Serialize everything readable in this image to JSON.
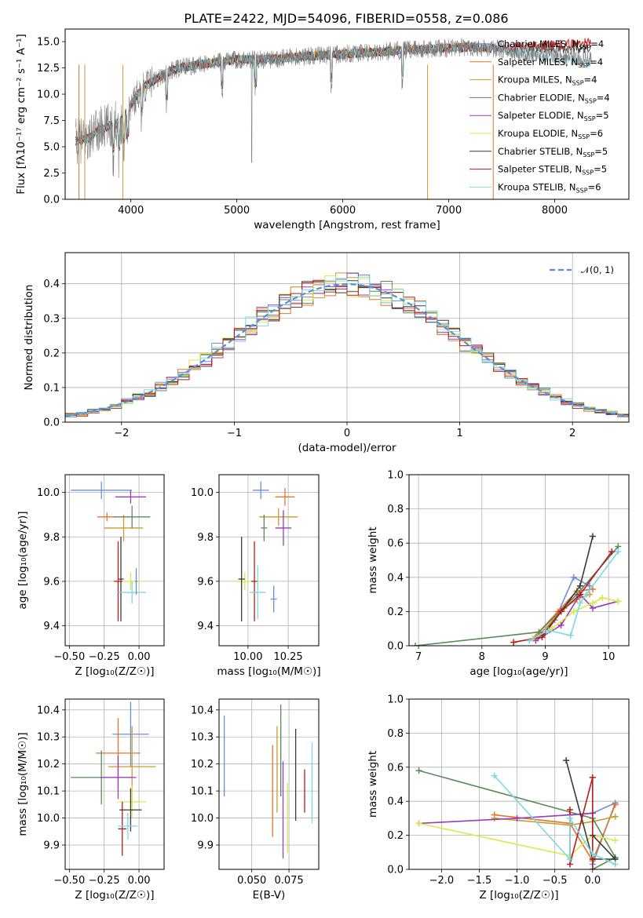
{
  "figure": {
    "title": "PLATE=2422, MJD=54096, FIBERID=0558, z=0.086"
  },
  "legend_spectrum": [
    {
      "label": "Chabrier MILES, N",
      "sub": "SSP",
      "tail": "=4",
      "color": "#6a8fd9"
    },
    {
      "label": "Salpeter MILES, N",
      "sub": "SSP",
      "tail": "=4",
      "color": "#e5742c"
    },
    {
      "label": "Kroupa MILES, N",
      "sub": "SSP",
      "tail": "=4",
      "color": "#c99a2e"
    },
    {
      "label": "Chabrier ELODIE, N",
      "sub": "SSP",
      "tail": "=4",
      "color": "#5a8a5a"
    },
    {
      "label": "Salpeter ELODIE, N",
      "sub": "SSP",
      "tail": "=5",
      "color": "#9a3cb8"
    },
    {
      "label": "Kroupa ELODIE, N",
      "sub": "SSP",
      "tail": "=6",
      "color": "#d9e84a"
    },
    {
      "label": "Chabrier STELIB, N",
      "sub": "SSP",
      "tail": "=5",
      "color": "#3a3a3a"
    },
    {
      "label": "Salpeter STELIB, N",
      "sub": "SSP",
      "tail": "=5",
      "color": "#b81c1c"
    },
    {
      "label": "Kroupa STELIB, N",
      "sub": "SSP",
      "tail": "=6",
      "color": "#7fd8e0"
    }
  ],
  "legend_resid": {
    "label": "𝒩(0, 1)",
    "color": "#5b8fd9"
  },
  "chart_data": [
    {
      "type": "line",
      "id": "spectrum",
      "title": "PLATE=2422, MJD=54096, FIBERID=0558, z=0.086",
      "xlabel": "wavelength [Angstrom, rest frame]",
      "ylabel": "Flux [f_λ 10^-17 erg cm^-2 s^-1 A^-1]",
      "xlim": [
        3380,
        8700
      ],
      "ylim": [
        0,
        16.2
      ],
      "xticks": [
        4000,
        5000,
        6000,
        7000,
        8000
      ],
      "yticks": [
        0.0,
        2.5,
        5.0,
        7.5,
        10.0,
        12.5,
        15.0
      ],
      "data_envelope": {
        "x": [
          3480,
          3600,
          3700,
          3800,
          3900,
          4000,
          4100,
          4200,
          4300,
          4400,
          4500,
          4700,
          5000,
          5300,
          5600,
          6000,
          6300,
          6600,
          6800,
          7000,
          7200,
          7400,
          7600,
          7800,
          8000,
          8200,
          8300
        ],
        "y": [
          5.5,
          5.8,
          6.6,
          7.0,
          7.3,
          9.0,
          10.5,
          11.2,
          11.8,
          12.3,
          12.6,
          12.9,
          13.3,
          13.3,
          13.6,
          13.8,
          14.0,
          14.2,
          14.3,
          14.4,
          14.5,
          14.4,
          14.1,
          13.9,
          13.7,
          13.5,
          13.4
        ]
      },
      "models": [
        {
          "name": "Chabrier MILES",
          "end": 7380,
          "tail": 0
        },
        {
          "name": "Salpeter MILES",
          "end": 7420,
          "tail": 0
        },
        {
          "name": "Kroupa MILES",
          "end": 7380,
          "tail": 0
        },
        {
          "name": "Chabrier ELODIE",
          "end": 6800,
          "tail": 0
        },
        {
          "name": "Salpeter ELODIE",
          "end": 6800,
          "tail": 0
        },
        {
          "name": "Kroupa ELODIE",
          "end": 6800,
          "tail": 0
        },
        {
          "name": "Chabrier STELIB",
          "end": 8350,
          "tail": 1.0
        },
        {
          "name": "Salpeter STELIB",
          "end": 8350,
          "tail": 1.6
        },
        {
          "name": "Kroupa STELIB",
          "end": 8350,
          "tail": -0.4
        }
      ]
    },
    {
      "type": "line",
      "id": "residuals",
      "xlabel": "(data-model)/error",
      "ylabel": "Normed distribution",
      "xlim": [
        -2.5,
        2.5
      ],
      "ylim": [
        0,
        0.49
      ],
      "xticks": [
        -2,
        -1,
        0,
        1,
        2
      ],
      "yticks": [
        0.0,
        0.1,
        0.2,
        0.3,
        0.4
      ],
      "series": [
        {
          "name": "𝒩(0, 1)",
          "mean": 0,
          "sigma": 1
        }
      ]
    },
    {
      "type": "scatter",
      "id": "age_vs_Z",
      "xlabel": "Z [log10(Z/Z⊙)]",
      "ylabel": "age [log10(age/yr)]",
      "xlim": [
        -0.53,
        0.18
      ],
      "ylim": [
        9.31,
        10.08
      ],
      "xticks": [
        -0.5,
        -0.25,
        0.0
      ],
      "yticks": [
        9.4,
        9.6,
        9.8,
        10.0
      ],
      "points": [
        {
          "x": -0.27,
          "xerr": 0.22,
          "y": 10.01,
          "yerr": 0.04
        },
        {
          "x": -0.23,
          "xerr": 0.07,
          "y": 9.89,
          "yerr": 0.02
        },
        {
          "x": -0.11,
          "xerr": 0.14,
          "y": 9.84,
          "yerr": 0.06
        },
        {
          "x": -0.05,
          "xerr": 0.13,
          "y": 9.89,
          "yerr": 0.05
        },
        {
          "x": -0.06,
          "xerr": 0.11,
          "y": 9.98,
          "yerr": 0.03
        },
        {
          "x": -0.06,
          "xerr": 0.08,
          "y": 9.6,
          "yerr": 0.04
        },
        {
          "x": -0.13,
          "xerr": 0.02,
          "y": 9.61,
          "yerr": 0.19
        },
        {
          "x": -0.15,
          "xerr": 0.03,
          "y": 9.6,
          "yerr": 0.18
        },
        {
          "x": -0.05,
          "xerr": 0.1,
          "y": 9.55,
          "yerr": 0.05
        },
        {
          "x": -0.02,
          "xerr": 0.01,
          "y": 9.6,
          "yerr": 0.06
        }
      ]
    },
    {
      "type": "scatter",
      "id": "age_vs_mass",
      "xlabel": "mass [log10(M/M⊙)]",
      "ylabel": "",
      "xlim": [
        9.82,
        10.44
      ],
      "ylim": [
        9.31,
        10.08
      ],
      "xticks": [
        10.0,
        10.25
      ],
      "yticks": [
        9.4,
        9.6,
        9.8,
        10.0
      ],
      "points": [
        {
          "x": 10.08,
          "xerr": 0.05,
          "y": 10.01,
          "yerr": 0.04
        },
        {
          "x": 10.23,
          "xerr": 0.06,
          "y": 9.98,
          "yerr": 0.04
        },
        {
          "x": 10.19,
          "xerr": 0.12,
          "y": 9.89,
          "yerr": 0.04
        },
        {
          "x": 10.1,
          "xerr": 0.02,
          "y": 9.84,
          "yerr": 0.06
        },
        {
          "x": 10.22,
          "xerr": 0.05,
          "y": 9.84,
          "yerr": 0.08
        },
        {
          "x": 9.98,
          "xerr": 0.07,
          "y": 9.6,
          "yerr": 0.04
        },
        {
          "x": 9.96,
          "xerr": 0.02,
          "y": 9.61,
          "yerr": 0.19
        },
        {
          "x": 10.04,
          "xerr": 0.02,
          "y": 9.6,
          "yerr": 0.18
        },
        {
          "x": 10.06,
          "xerr": 0.05,
          "y": 9.55,
          "yerr": 0.12
        },
        {
          "x": 10.16,
          "xerr": 0.02,
          "y": 9.52,
          "yerr": 0.06
        }
      ]
    },
    {
      "type": "line",
      "id": "mass_weight_vs_age",
      "xlabel": "age [log10(age/yr)]",
      "ylabel": "mass weight",
      "xlim": [
        6.85,
        10.32
      ],
      "ylim": [
        0,
        1.0
      ],
      "xticks": [
        7,
        8,
        9,
        10
      ],
      "yticks": [
        0.0,
        0.2,
        0.4,
        0.6,
        0.8,
        1.0
      ],
      "series": [
        {
          "name": "Chabrier MILES",
          "x": [
            8.85,
            9.15,
            9.45,
            9.7
          ],
          "y": [
            0.05,
            0.15,
            0.4,
            0.35
          ]
        },
        {
          "name": "Salpeter MILES",
          "x": [
            8.8,
            9.2,
            9.5,
            9.75
          ],
          "y": [
            0.04,
            0.2,
            0.32,
            0.33
          ]
        },
        {
          "name": "Kroupa MILES",
          "x": [
            8.9,
            9.3,
            9.5,
            9.7
          ],
          "y": [
            0.06,
            0.22,
            0.27,
            0.3
          ]
        },
        {
          "name": "Chabrier ELODIE",
          "x": [
            6.95,
            8.9,
            9.5,
            10.15
          ],
          "y": [
            0.0,
            0.08,
            0.3,
            0.58
          ]
        },
        {
          "name": "Salpeter ELODIE",
          "x": [
            8.85,
            9.25,
            9.55,
            9.75,
            10.15
          ],
          "y": [
            0.03,
            0.12,
            0.3,
            0.22,
            0.26
          ]
        },
        {
          "name": "Kroupa ELODIE",
          "x": [
            8.8,
            9.1,
            9.45,
            9.75,
            9.9,
            10.15
          ],
          "y": [
            0.04,
            0.1,
            0.2,
            0.25,
            0.28,
            0.26
          ]
        },
        {
          "name": "Chabrier STELIB",
          "x": [
            8.95,
            9.25,
            9.55,
            9.75
          ],
          "y": [
            0.06,
            0.2,
            0.35,
            0.64
          ]
        },
        {
          "name": "Salpeter STELIB",
          "x": [
            8.5,
            8.95,
            9.25,
            9.55,
            10.05
          ],
          "y": [
            0.02,
            0.05,
            0.2,
            0.3,
            0.55
          ]
        },
        {
          "name": "Kroupa STELIB",
          "x": [
            8.75,
            9.05,
            9.4,
            9.55,
            9.65,
            10.15
          ],
          "y": [
            0.03,
            0.09,
            0.06,
            0.25,
            0.3,
            0.55
          ]
        }
      ]
    },
    {
      "type": "scatter",
      "id": "mass_vs_Z",
      "xlabel": "Z [log10(Z/Z⊙)]",
      "ylabel": "mass [log10(M/M⊙)]",
      "xlim": [
        -0.53,
        0.18
      ],
      "ylim": [
        9.81,
        10.44
      ],
      "xticks": [
        -0.5,
        -0.25,
        0.0
      ],
      "yticks": [
        9.9,
        10.0,
        10.1,
        10.2,
        10.3,
        10.4
      ],
      "points": [
        {
          "x": -0.06,
          "xerr": 0.13,
          "y": 10.31,
          "yerr": 0.12
        },
        {
          "x": -0.15,
          "xerr": 0.16,
          "y": 10.24,
          "yerr": 0.13
        },
        {
          "x": -0.05,
          "xerr": 0.17,
          "y": 10.19,
          "yerr": 0.15
        },
        {
          "x": -0.27,
          "xerr": 0.22,
          "y": 10.15,
          "yerr": 0.1
        },
        {
          "x": -0.15,
          "xerr": 0.13,
          "y": 10.15,
          "yerr": 0.08
        },
        {
          "x": -0.05,
          "xerr": 0.1,
          "y": 10.06,
          "yerr": 0.06
        },
        {
          "x": -0.06,
          "xerr": 0.08,
          "y": 10.03,
          "yerr": 0.08
        },
        {
          "x": -0.12,
          "xerr": 0.03,
          "y": 9.96,
          "yerr": 0.1
        },
        {
          "x": -0.08,
          "xerr": 0.07,
          "y": 9.97,
          "yerr": 0.05
        }
      ]
    },
    {
      "type": "scatter",
      "id": "mass_vs_ebv",
      "xlabel": "E(B-V)",
      "ylabel": "",
      "xlim": [
        0.028,
        0.095
      ],
      "ylim": [
        9.81,
        10.44
      ],
      "xticks": [
        0.05,
        0.075
      ],
      "yticks": [
        9.9,
        10.0,
        10.1,
        10.2,
        10.3,
        10.4
      ],
      "points": [
        {
          "x": 0.0315,
          "y": 10.23,
          "yerr": 0.15
        },
        {
          "x": 0.064,
          "y": 10.1,
          "yerr": 0.17
        },
        {
          "x": 0.067,
          "y": 10.18,
          "yerr": 0.16
        },
        {
          "x": 0.0695,
          "y": 10.25,
          "yerr": 0.17
        },
        {
          "x": 0.071,
          "y": 10.03,
          "yerr": 0.18
        },
        {
          "x": 0.074,
          "y": 10.0,
          "yerr": 0.13
        },
        {
          "x": 0.0795,
          "y": 10.16,
          "yerr": 0.17
        },
        {
          "x": 0.0855,
          "y": 10.1,
          "yerr": 0.08
        },
        {
          "x": 0.0905,
          "y": 10.13,
          "yerr": 0.15
        }
      ]
    },
    {
      "type": "line",
      "id": "mass_weight_vs_Z",
      "xlabel": "Z [log10(Z/Z⊙)]",
      "ylabel": "mass weight",
      "xlim": [
        -2.43,
        0.48
      ],
      "ylim": [
        0,
        1.0
      ],
      "xticks": [
        -2.0,
        -1.5,
        -1.0,
        -0.5,
        0.0
      ],
      "yticks": [
        0.0,
        0.2,
        0.4,
        0.6,
        0.8,
        1.0
      ],
      "series": [
        {
          "name": "Chabrier MILES",
          "x": [
            -0.3,
            0.0,
            0.3,
            0.0
          ],
          "y": [
            0.32,
            0.33,
            0.39,
            0.03
          ]
        },
        {
          "name": "Salpeter MILES",
          "x": [
            -1.3,
            -0.3,
            0.0,
            0.3
          ],
          "y": [
            0.32,
            0.27,
            0.05,
            0.38
          ]
        },
        {
          "name": "Kroupa MILES",
          "x": [
            -1.3,
            -0.3,
            0.0,
            0.3
          ],
          "y": [
            0.3,
            0.26,
            0.28,
            0.31
          ]
        },
        {
          "name": "Chabrier ELODIE",
          "x": [
            -2.3,
            0.0,
            0.3,
            0.0
          ],
          "y": [
            0.58,
            0.3,
            0.07,
            0.0
          ]
        },
        {
          "name": "Salpeter ELODIE",
          "x": [
            -2.3,
            -1.0,
            -0.3,
            0.0
          ],
          "y": [
            0.27,
            0.3,
            0.32,
            0.33
          ]
        },
        {
          "name": "Kroupa ELODIE",
          "x": [
            -2.3,
            -0.3,
            0.0,
            0.3
          ],
          "y": [
            0.27,
            0.08,
            0.2,
            0.17
          ]
        },
        {
          "name": "Chabrier STELIB",
          "x": [
            -0.35,
            0.0,
            0.3,
            0.0
          ],
          "y": [
            0.64,
            0.06,
            0.06,
            0.2
          ]
        },
        {
          "name": "Salpeter STELIB",
          "x": [
            -0.3,
            -0.3,
            0.0,
            0.0
          ],
          "y": [
            0.35,
            0.03,
            0.54,
            0.0
          ]
        },
        {
          "name": "Kroupa STELIB",
          "x": [
            -1.3,
            -0.3,
            -0.3,
            0.0,
            0.3
          ],
          "y": [
            0.55,
            0.06,
            0.3,
            0.09,
            0.03
          ]
        }
      ]
    }
  ]
}
